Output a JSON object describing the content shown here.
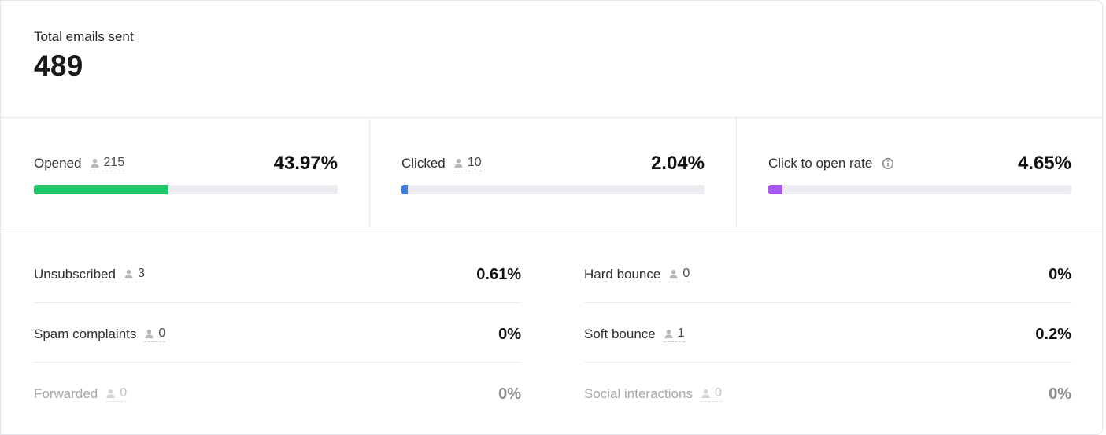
{
  "total": {
    "label": "Total emails sent",
    "value": "489"
  },
  "metrics": [
    {
      "label": "Opened",
      "count": "215",
      "percent": "43.97%",
      "fill": 0.4397,
      "color": "#1ec86a"
    },
    {
      "label": "Clicked",
      "count": "10",
      "percent": "2.04%",
      "fill": 0.0204,
      "color": "#3b7de0"
    },
    {
      "label": "Click to open rate",
      "percent": "4.65%",
      "fill": 0.0465,
      "color": "#a857ee",
      "icon": "info-icon"
    }
  ],
  "details": [
    {
      "label": "Unsubscribed",
      "count": "3",
      "percent": "0.61%"
    },
    {
      "label": "Hard bounce",
      "count": "0",
      "percent": "0%"
    },
    {
      "label": "Spam complaints",
      "count": "0",
      "percent": "0%"
    },
    {
      "label": "Soft bounce",
      "count": "1",
      "percent": "0.2%"
    },
    {
      "label": "Forwarded",
      "count": "0",
      "percent": "0%"
    },
    {
      "label": "Social interactions",
      "count": "0",
      "percent": "0%"
    }
  ],
  "icons": {
    "person": "person-icon"
  }
}
